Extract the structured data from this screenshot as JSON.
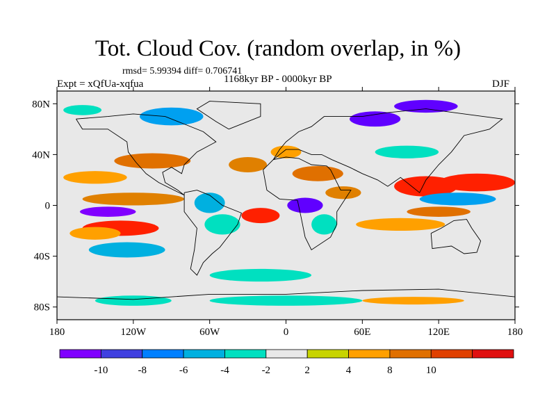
{
  "title": "Tot. Cloud Cov. (random overlap, in %)",
  "stats": "rmsd= 5.99394 diff= 0.706741",
  "experiment": "Expt = xQfUa-xqfua",
  "period": "1168kyr BP - 0000kyr BP",
  "season": "DJF",
  "map": {
    "projection": "cylindrical-equidistant",
    "lon_range": [
      -180,
      180
    ],
    "lat_range": [
      -90,
      90
    ],
    "lon_ticks": [
      {
        "value": -180,
        "label": "180"
      },
      {
        "value": -120,
        "label": "120W"
      },
      {
        "value": -60,
        "label": "60W"
      },
      {
        "value": 0,
        "label": "0"
      },
      {
        "value": 60,
        "label": "60E"
      },
      {
        "value": 120,
        "label": "120E"
      },
      {
        "value": 180,
        "label": "180"
      }
    ],
    "lat_ticks": [
      {
        "value": 80,
        "label": "80N"
      },
      {
        "value": 40,
        "label": "40N"
      },
      {
        "value": 0,
        "label": "0"
      },
      {
        "value": -40,
        "label": "40S"
      },
      {
        "value": -80,
        "label": "80S"
      }
    ],
    "background_color": "#e8e8e8",
    "anomaly_patches": [
      {
        "lon": -105,
        "lat": 35,
        "rlon": 30,
        "rlat": 6,
        "color": "#e07000"
      },
      {
        "lon": -150,
        "lat": 22,
        "rlon": 25,
        "rlat": 5,
        "color": "#ffa000"
      },
      {
        "lon": -120,
        "lat": 5,
        "rlon": 40,
        "rlat": 5,
        "color": "#e08000"
      },
      {
        "lon": -140,
        "lat": -5,
        "rlon": 22,
        "rlat": 4,
        "color": "#8000ff"
      },
      {
        "lon": -130,
        "lat": -18,
        "rlon": 30,
        "rlat": 6,
        "color": "#ff2000"
      },
      {
        "lon": -150,
        "lat": -22,
        "rlon": 20,
        "rlat": 5,
        "color": "#ffa000"
      },
      {
        "lon": -125,
        "lat": -35,
        "rlon": 30,
        "rlat": 6,
        "color": "#00b0e0"
      },
      {
        "lon": -60,
        "lat": 2,
        "rlon": 12,
        "rlat": 8,
        "color": "#00b0e0"
      },
      {
        "lon": -50,
        "lat": -15,
        "rlon": 14,
        "rlat": 8,
        "color": "#00e0c0"
      },
      {
        "lon": -20,
        "lat": -8,
        "rlon": 15,
        "rlat": 6,
        "color": "#ff2000"
      },
      {
        "lon": -30,
        "lat": 32,
        "rlon": 15,
        "rlat": 6,
        "color": "#e08000"
      },
      {
        "lon": 0,
        "lat": 42,
        "rlon": 12,
        "rlat": 5,
        "color": "#ffa000"
      },
      {
        "lon": 25,
        "lat": 25,
        "rlon": 20,
        "rlat": 6,
        "color": "#e07000"
      },
      {
        "lon": 15,
        "lat": 0,
        "rlon": 14,
        "rlat": 6,
        "color": "#6000ff"
      },
      {
        "lon": 30,
        "lat": -15,
        "rlon": 10,
        "rlat": 8,
        "color": "#00e0c0"
      },
      {
        "lon": 45,
        "lat": 10,
        "rlon": 14,
        "rlat": 5,
        "color": "#e08000"
      },
      {
        "lon": 110,
        "lat": 15,
        "rlon": 25,
        "rlat": 8,
        "color": "#ff2000"
      },
      {
        "lon": 150,
        "lat": 18,
        "rlon": 30,
        "rlat": 7,
        "color": "#ff2000"
      },
      {
        "lon": 135,
        "lat": 5,
        "rlon": 30,
        "rlat": 5,
        "color": "#00a0f0"
      },
      {
        "lon": 90,
        "lat": -15,
        "rlon": 35,
        "rlat": 5,
        "color": "#ffa000"
      },
      {
        "lon": 120,
        "lat": -5,
        "rlon": 25,
        "rlat": 4,
        "color": "#e07000"
      },
      {
        "lon": 95,
        "lat": 42,
        "rlon": 25,
        "rlat": 5,
        "color": "#00e0c0"
      },
      {
        "lon": 70,
        "lat": 68,
        "rlon": 20,
        "rlat": 6,
        "color": "#6000ff"
      },
      {
        "lon": 110,
        "lat": 78,
        "rlon": 25,
        "rlat": 5,
        "color": "#6000ff"
      },
      {
        "lon": -90,
        "lat": 70,
        "rlon": 25,
        "rlat": 7,
        "color": "#00a0f0"
      },
      {
        "lon": -160,
        "lat": 75,
        "rlon": 15,
        "rlat": 4,
        "color": "#00e0c0"
      },
      {
        "lon": 0,
        "lat": -75,
        "rlon": 60,
        "rlat": 4,
        "color": "#00e0c0"
      },
      {
        "lon": 100,
        "lat": -75,
        "rlon": 40,
        "rlat": 3,
        "color": "#ffa000"
      },
      {
        "lon": -120,
        "lat": -75,
        "rlon": 30,
        "rlat": 4,
        "color": "#00e0c0"
      },
      {
        "lon": -20,
        "lat": -55,
        "rlon": 40,
        "rlat": 5,
        "color": "#00e0c0"
      }
    ]
  },
  "colorbar": {
    "colors": [
      "#8000ff",
      "#4040e0",
      "#0080ff",
      "#00b0e0",
      "#00e0c0",
      "#e8e8e8",
      "#c8d400",
      "#ffa000",
      "#e07000",
      "#e04000",
      "#e01010"
    ],
    "labels": [
      "-10",
      "-8",
      "-6",
      "-4",
      "-2",
      "2",
      "4",
      "8",
      "10"
    ]
  }
}
